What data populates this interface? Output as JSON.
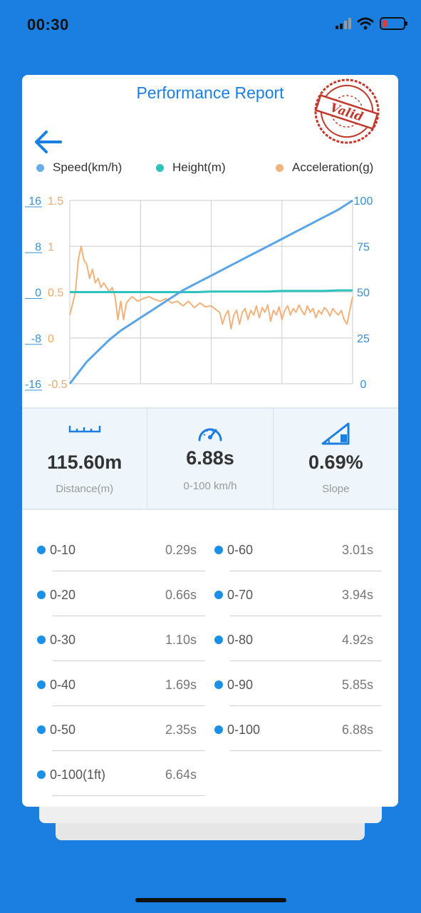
{
  "status_bar": {
    "time": "00:30"
  },
  "header": {
    "title": "Performance Report",
    "stamp_text": "Valid"
  },
  "legend": [
    {
      "label": "Speed(km/h)",
      "color": "#6aaee8"
    },
    {
      "label": "Height(m)",
      "color": "#2cc2bd"
    },
    {
      "label": "Acceleration(g)",
      "color": "#f2b27d"
    }
  ],
  "chart_data": {
    "type": "line",
    "xlabel": "",
    "axes": {
      "height_ticks": [
        "16",
        "8",
        "0",
        "-8",
        "-16"
      ],
      "height_range": [
        -16,
        16
      ],
      "accel_ticks": [
        "1.5",
        "1",
        "0.5",
        "0",
        "-0.5"
      ],
      "accel_range": [
        -0.5,
        1.5
      ],
      "speed_ticks": [
        "100",
        "75",
        "50",
        "25",
        "0"
      ],
      "speed_range": [
        0,
        100
      ]
    },
    "grid": true,
    "x": [
      0,
      3,
      6,
      10,
      14,
      18,
      22,
      26,
      30,
      35,
      40,
      45,
      50,
      55,
      60,
      65,
      70,
      75,
      80,
      85,
      90,
      95,
      100
    ],
    "series": [
      {
        "name": "Speed(km/h)",
        "values": [
          0,
          6,
          12,
          18,
          24,
          29,
          33,
          37,
          41,
          46,
          51,
          55,
          59,
          63,
          67,
          71,
          75,
          79,
          83,
          87,
          91,
          95,
          100
        ]
      },
      {
        "name": "Height(m)",
        "values": [
          0,
          0,
          0,
          0,
          0,
          0,
          0,
          0,
          0,
          0,
          0,
          0,
          0.1,
          0.1,
          0.1,
          0.1,
          0.1,
          0.2,
          0.2,
          0.2,
          0.2,
          0.3,
          0.3
        ]
      },
      {
        "name": "Acceleration(g)",
        "x": [
          0,
          2,
          3,
          4,
          5,
          6,
          7,
          8,
          9,
          10,
          11,
          12,
          14,
          15,
          16,
          17,
          18,
          19,
          20,
          21,
          22,
          24,
          26,
          28,
          30,
          32,
          34,
          36,
          38,
          40,
          42,
          44,
          46,
          48,
          50,
          52,
          53,
          54,
          55,
          56,
          57,
          58,
          59,
          60,
          61,
          62,
          63,
          64,
          65,
          66,
          67,
          68,
          69,
          70,
          71,
          72,
          73,
          74,
          75,
          76,
          77,
          78,
          79,
          80,
          81,
          82,
          83,
          84,
          85,
          86,
          87,
          88,
          89,
          90,
          91,
          92,
          93,
          94,
          95,
          96,
          97,
          98,
          99,
          100
        ],
        "values": [
          0.25,
          0.5,
          0.85,
          1.0,
          0.85,
          0.8,
          0.65,
          0.75,
          0.6,
          0.65,
          0.55,
          0.6,
          0.5,
          0.55,
          0.45,
          0.2,
          0.4,
          0.2,
          0.38,
          0.42,
          0.45,
          0.4,
          0.43,
          0.45,
          0.42,
          0.4,
          0.43,
          0.38,
          0.4,
          0.35,
          0.4,
          0.33,
          0.38,
          0.34,
          0.35,
          0.3,
          0.28,
          0.15,
          0.25,
          0.3,
          0.1,
          0.25,
          0.3,
          0.15,
          0.28,
          0.32,
          0.2,
          0.3,
          0.25,
          0.35,
          0.22,
          0.33,
          0.28,
          0.36,
          0.18,
          0.3,
          0.25,
          0.34,
          0.2,
          0.3,
          0.35,
          0.25,
          0.32,
          0.28,
          0.36,
          0.3,
          0.25,
          0.35,
          0.28,
          0.32,
          0.22,
          0.3,
          0.26,
          0.33,
          0.3,
          0.24,
          0.32,
          0.28,
          0.25,
          0.3,
          0.2,
          0.15,
          0.3,
          0.45
        ]
      }
    ]
  },
  "stats": [
    {
      "value": "115.60m",
      "label": "Distance(m)",
      "icon": "ruler-icon"
    },
    {
      "value": "6.88s",
      "label": "0-100 km/h",
      "icon": "speedometer-icon"
    },
    {
      "value": "0.69%",
      "label": "Slope",
      "icon": "slope-icon"
    }
  ],
  "splits": [
    {
      "label": "0-10",
      "value": "0.29s"
    },
    {
      "label": "0-60",
      "value": "3.01s"
    },
    {
      "label": "0-20",
      "value": "0.66s"
    },
    {
      "label": "0-70",
      "value": "3.94s"
    },
    {
      "label": "0-30",
      "value": "1.10s"
    },
    {
      "label": "0-80",
      "value": "4.92s"
    },
    {
      "label": "0-40",
      "value": "1.69s"
    },
    {
      "label": "0-90",
      "value": "5.85s"
    },
    {
      "label": "0-50",
      "value": "2.35s"
    },
    {
      "label": "0-100",
      "value": "6.88s"
    },
    {
      "label": "0-100(1ft)",
      "value": "6.64s"
    }
  ]
}
